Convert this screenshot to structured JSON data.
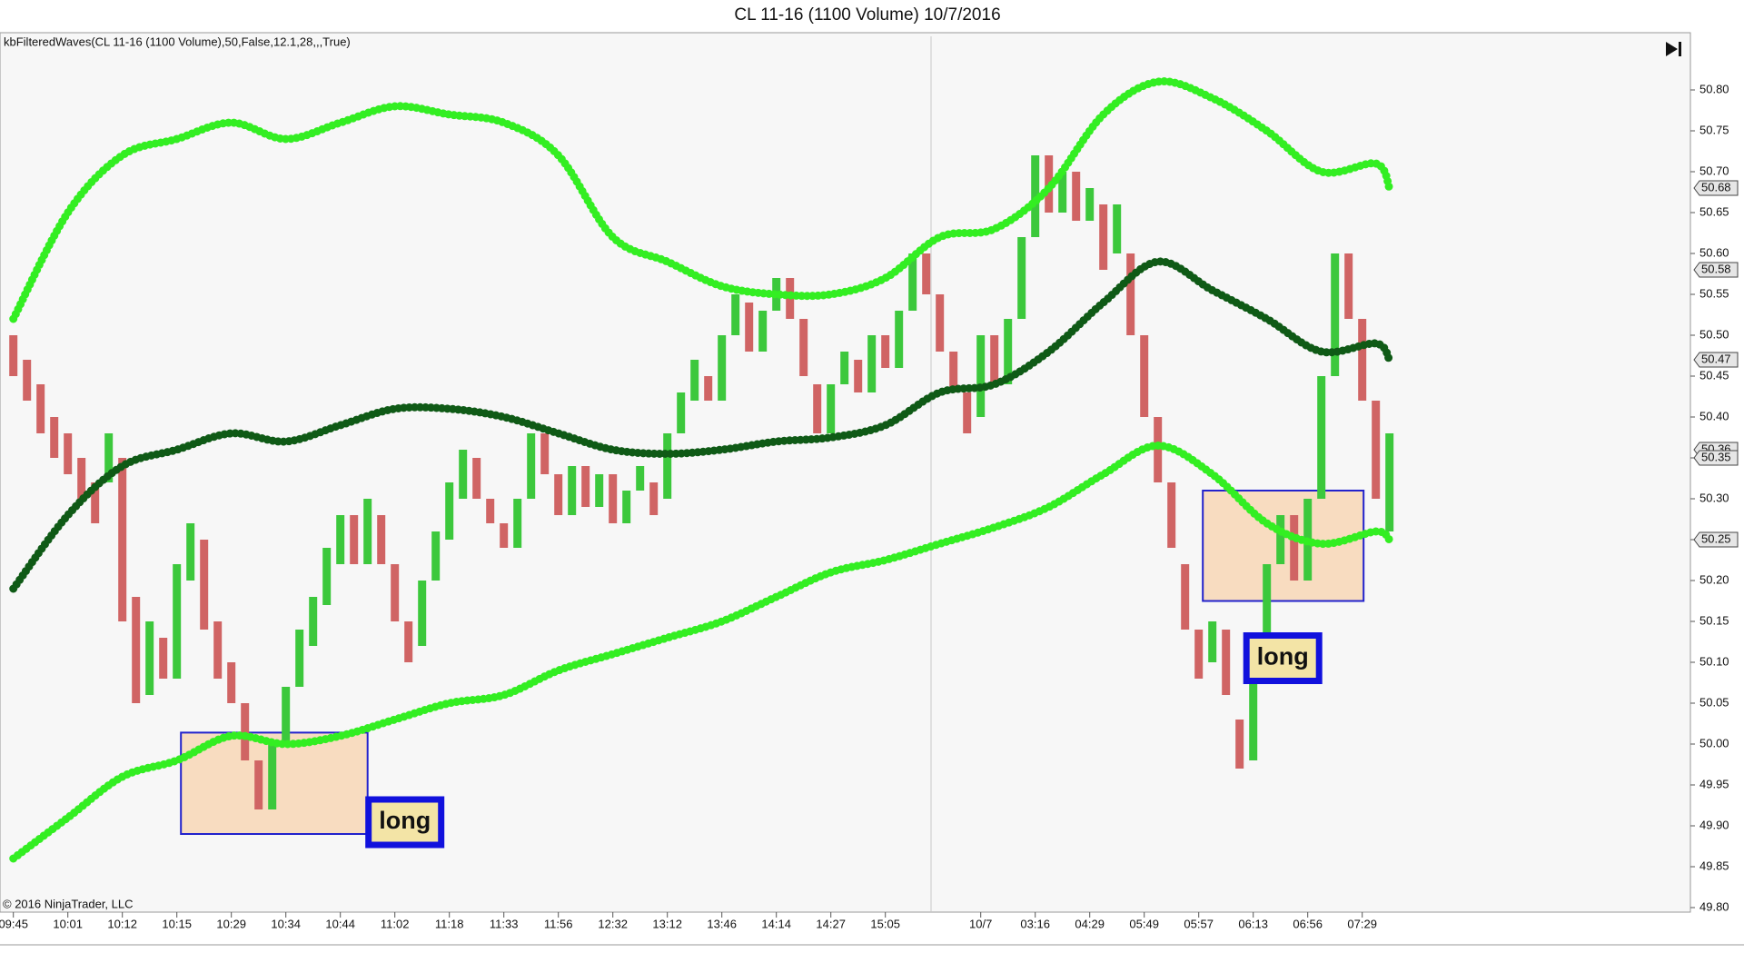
{
  "chart_data": {
    "type": "candlestick",
    "title": "CL 11-16 (1100 Volume)  10/7/2016",
    "indicator_label": "kbFilteredWaves(CL  11-16  (1100  Volume),50,False,12.1,28,,,True)",
    "copyright": "© 2016 NinjaTrader, LLC",
    "up_color": "#3cc83c",
    "down_color": "#d06464",
    "categories": [
      "09:45",
      null,
      null,
      null,
      "10:01",
      null,
      null,
      null,
      "10:12",
      null,
      null,
      null,
      "10:15",
      null,
      null,
      null,
      "10:29",
      null,
      null,
      null,
      "10:34",
      null,
      null,
      null,
      "10:44",
      null,
      null,
      null,
      "11:02",
      null,
      null,
      null,
      "11:18",
      null,
      null,
      null,
      "11:33",
      null,
      null,
      null,
      "11:56",
      null,
      null,
      null,
      "12:32",
      null,
      null,
      null,
      "13:12",
      null,
      null,
      null,
      "13:46",
      null,
      null,
      null,
      "14:14",
      null,
      null,
      null,
      "14:27",
      null,
      null,
      null,
      "15:05",
      null,
      null,
      null,
      null,
      null,
      null,
      "10/7",
      null,
      null,
      null,
      "03:16",
      null,
      null,
      null,
      "04:29",
      null,
      null,
      null,
      "05:49",
      null,
      null,
      null,
      "05:57",
      null,
      null,
      null,
      "06:13",
      null,
      null,
      null,
      "06:56",
      null,
      null,
      null,
      "07:29",
      null,
      null
    ],
    "open": [
      50.5,
      50.47,
      50.44,
      50.4,
      50.38,
      50.35,
      50.32,
      50.32,
      50.35,
      50.18,
      50.06,
      50.13,
      50.08,
      50.2,
      50.25,
      50.15,
      50.1,
      50.05,
      49.98,
      49.92,
      50.0,
      50.07,
      50.12,
      50.17,
      50.22,
      50.28,
      50.22,
      50.28,
      50.22,
      50.15,
      50.12,
      50.2,
      50.25,
      50.3,
      50.35,
      50.3,
      50.27,
      50.24,
      50.3,
      50.38,
      50.33,
      50.28,
      50.34,
      50.29,
      50.33,
      50.27,
      50.31,
      50.32,
      50.3,
      50.38,
      50.42,
      50.45,
      50.42,
      50.5,
      50.54,
      50.48,
      50.53,
      50.57,
      50.52,
      50.44,
      50.38,
      50.44,
      50.47,
      50.43,
      50.5,
      50.46,
      50.53,
      50.6,
      50.55,
      50.48,
      50.43,
      50.4,
      50.5,
      50.44,
      50.52,
      50.62,
      50.72,
      50.65,
      50.7,
      50.64,
      50.66,
      50.6,
      50.6,
      50.5,
      50.4,
      50.32,
      50.22,
      50.14,
      50.1,
      50.14,
      50.03,
      49.98,
      50.12,
      50.22,
      50.28,
      50.2,
      50.3,
      50.45,
      50.6,
      50.52,
      50.42,
      50.26
    ],
    "close": [
      50.45,
      50.42,
      50.38,
      50.35,
      50.33,
      50.3,
      50.27,
      50.38,
      50.15,
      50.05,
      50.15,
      50.08,
      50.22,
      50.27,
      50.14,
      50.08,
      50.05,
      49.98,
      49.92,
      50.0,
      50.07,
      50.14,
      50.18,
      50.24,
      50.28,
      50.22,
      50.3,
      50.22,
      50.15,
      50.1,
      50.2,
      50.26,
      50.32,
      50.36,
      50.3,
      50.27,
      50.24,
      50.3,
      50.38,
      50.33,
      50.28,
      50.34,
      50.29,
      50.33,
      50.27,
      50.31,
      50.34,
      50.28,
      50.38,
      50.43,
      50.47,
      50.42,
      50.5,
      50.55,
      50.48,
      50.53,
      50.57,
      50.52,
      50.45,
      50.38,
      50.44,
      50.48,
      50.43,
      50.5,
      50.46,
      50.53,
      50.6,
      50.55,
      50.48,
      50.43,
      50.38,
      50.5,
      50.44,
      50.52,
      50.62,
      50.72,
      50.65,
      50.7,
      50.64,
      50.68,
      50.58,
      50.66,
      50.5,
      50.4,
      50.32,
      50.24,
      50.14,
      50.08,
      50.15,
      50.06,
      49.97,
      50.12,
      50.22,
      50.28,
      50.2,
      50.3,
      50.45,
      50.6,
      50.52,
      50.42,
      50.3,
      50.38
    ],
    "bands": [
      {
        "color": "#33ee22",
        "x": [
          0,
          4,
          8,
          12,
          16,
          20,
          24,
          28,
          32,
          36,
          40,
          44,
          48,
          52,
          56,
          60,
          64,
          68,
          72,
          76,
          80,
          84,
          88,
          92,
          96,
          100,
          101
        ],
        "values": [
          50.52,
          50.65,
          50.72,
          50.74,
          50.76,
          50.74,
          50.76,
          50.78,
          50.77,
          50.76,
          50.72,
          50.62,
          50.59,
          50.56,
          50.55,
          50.55,
          50.57,
          50.62,
          50.63,
          50.68,
          50.77,
          50.81,
          50.79,
          50.75,
          50.7,
          50.71,
          50.68
        ]
      },
      {
        "color": "#0f5a16",
        "x": [
          0,
          4,
          8,
          12,
          16,
          20,
          24,
          28,
          32,
          36,
          40,
          44,
          48,
          52,
          56,
          60,
          64,
          68,
          72,
          76,
          80,
          84,
          88,
          92,
          96,
          100,
          101
        ],
        "values": [
          50.19,
          50.28,
          50.34,
          50.36,
          50.38,
          50.37,
          50.39,
          50.41,
          50.41,
          50.4,
          50.38,
          50.36,
          50.355,
          50.36,
          50.37,
          50.375,
          50.39,
          50.43,
          50.44,
          50.48,
          50.54,
          50.59,
          50.555,
          50.52,
          50.48,
          50.49,
          50.47
        ]
      },
      {
        "color": "#33ee22",
        "x": [
          0,
          4,
          8,
          12,
          16,
          20,
          24,
          28,
          32,
          36,
          40,
          44,
          48,
          52,
          56,
          60,
          64,
          68,
          72,
          76,
          80,
          84,
          88,
          92,
          96,
          100,
          101
        ],
        "values": [
          49.86,
          49.91,
          49.96,
          49.98,
          50.01,
          50.0,
          50.01,
          50.03,
          50.05,
          50.06,
          50.09,
          50.11,
          50.13,
          50.15,
          50.18,
          50.21,
          50.225,
          50.245,
          50.265,
          50.29,
          50.33,
          50.365,
          50.33,
          50.27,
          50.245,
          50.26,
          50.25
        ]
      }
    ],
    "zones": [
      {
        "x0": 12.3,
        "x1": 26,
        "y0": 49.89,
        "y1": 50.014,
        "label": "long"
      },
      {
        "x0": 87.3,
        "x1": 99.1,
        "y0": 50.175,
        "y1": 50.31,
        "label": "long"
      }
    ],
    "price_markers": [
      {
        "value": 50.68,
        "label": "50.68"
      },
      {
        "value": 50.58,
        "label": "50.58"
      },
      {
        "value": 50.47,
        "label": "50.47"
      },
      {
        "value": 50.36,
        "label": "50.36"
      },
      {
        "value": 50.35,
        "label": "50.35"
      },
      {
        "value": 50.25,
        "label": "50.25"
      }
    ],
    "ylim": [
      49.8,
      50.87
    ],
    "yticks": [
      {
        "value": 49.8,
        "label": "49.80"
      },
      {
        "value": 49.85,
        "label": "49.85"
      },
      {
        "value": 49.9,
        "label": "49.90"
      },
      {
        "value": 49.95,
        "label": "49.95"
      },
      {
        "value": 50.0,
        "label": "50.00"
      },
      {
        "value": 50.05,
        "label": "50.05"
      },
      {
        "value": 50.1,
        "label": "50.10"
      },
      {
        "value": 50.15,
        "label": "50.15"
      },
      {
        "value": 50.2,
        "label": "50.20"
      },
      {
        "value": 50.25,
        "label": "50.25"
      },
      {
        "value": 50.3,
        "label": "50.30"
      },
      {
        "value": 50.35,
        "label": "50.35"
      },
      {
        "value": 50.4,
        "label": "50.40"
      },
      {
        "value": 50.45,
        "label": "50.45"
      },
      {
        "value": 50.5,
        "label": "50.50"
      },
      {
        "value": 50.55,
        "label": "50.55"
      },
      {
        "value": 50.6,
        "label": "50.60"
      },
      {
        "value": 50.65,
        "label": "50.65"
      },
      {
        "value": 50.7,
        "label": "50.70"
      },
      {
        "value": 50.75,
        "label": "50.75"
      },
      {
        "value": 50.8,
        "label": "50.80"
      }
    ]
  }
}
